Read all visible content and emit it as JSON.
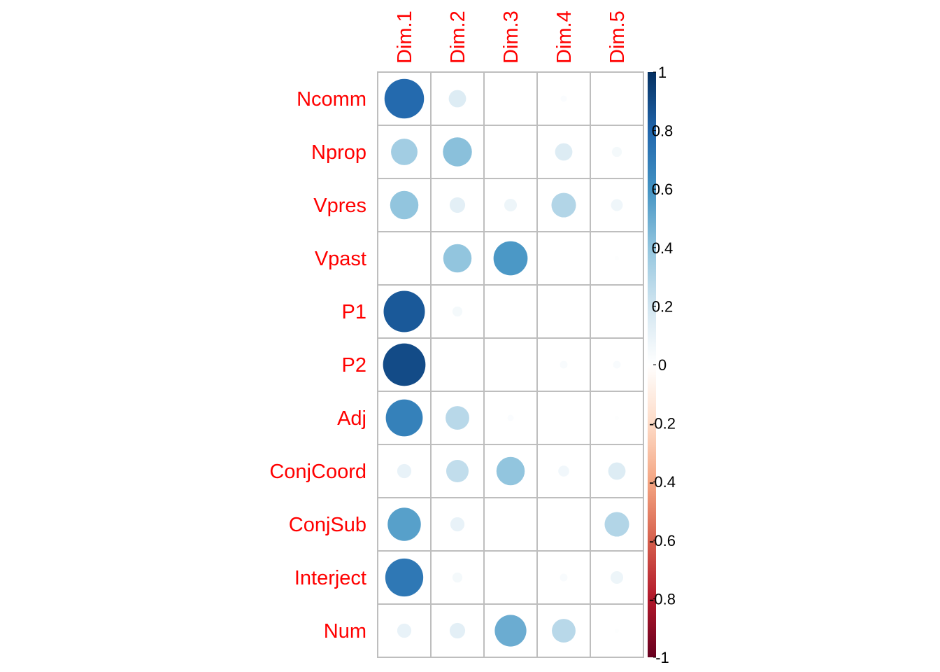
{
  "chart_data": {
    "type": "heatmap",
    "style": "corrplot-circle",
    "title": "",
    "rows": [
      "Ncomm",
      "Nprop",
      "Vpres",
      "Vpast",
      "P1",
      "P2",
      "Adj",
      "ConjCoord",
      "ConjSub",
      "Interject",
      "Num"
    ],
    "columns": [
      "Dim.1",
      "Dim.2",
      "Dim.3",
      "Dim.4",
      "Dim.5"
    ],
    "values": [
      [
        0.78,
        0.15,
        0.0,
        0.02,
        0.0
      ],
      [
        0.35,
        0.42,
        0.0,
        0.15,
        0.05
      ],
      [
        0.4,
        0.12,
        0.08,
        0.3,
        0.07
      ],
      [
        0.0,
        0.4,
        0.58,
        0.0,
        0.01
      ],
      [
        0.85,
        0.05,
        0.0,
        0.0,
        0.0
      ],
      [
        0.9,
        0.0,
        0.0,
        0.03,
        0.03
      ],
      [
        0.68,
        0.28,
        0.02,
        0.0,
        0.01
      ],
      [
        0.1,
        0.25,
        0.4,
        0.06,
        0.15
      ],
      [
        0.55,
        0.1,
        0.0,
        0.0,
        0.3
      ],
      [
        0.72,
        0.05,
        0.0,
        0.03,
        0.08
      ],
      [
        0.1,
        0.12,
        0.5,
        0.28,
        0.01
      ]
    ],
    "colorbar": {
      "range": [
        -1,
        1
      ],
      "ticks": [
        "1",
        "0.8",
        "0.6",
        "0.4",
        "0.2",
        "0",
        "-0.2",
        "-0.4",
        "-0.6",
        "-0.8",
        "-1"
      ],
      "colors": [
        "#67001F",
        "#B2182B",
        "#D6604D",
        "#F4A582",
        "#FDDBC7",
        "#FFFFFF",
        "#D1E5F0",
        "#92C5DE",
        "#4393C3",
        "#2166AC",
        "#053061"
      ]
    },
    "label_color": "#FF0000",
    "grid_color": "#BEBEBE"
  }
}
